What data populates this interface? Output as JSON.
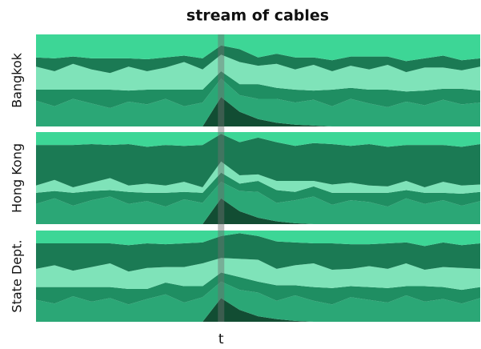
{
  "chart_data": {
    "type": "stream",
    "title": "stream of cables",
    "x_label": "t",
    "x": [
      0,
      1,
      2,
      3,
      4,
      5,
      6,
      7,
      8,
      9,
      10,
      11,
      12,
      13,
      14,
      15,
      16,
      17,
      18,
      19,
      20,
      21,
      22,
      23,
      24
    ],
    "xlim": [
      0,
      24
    ],
    "ylim": [
      0,
      100
    ],
    "highlight_x": 10,
    "panels": [
      {
        "label": "Bangkok",
        "series": [
          {
            "color": "#124d33",
            "values": [
              0,
              0,
              0,
              0,
              0,
              0,
              0,
              0,
              0,
              0,
              32,
              16,
              8,
              4,
              2,
              1,
              0,
              0,
              0,
              0,
              0,
              0,
              0,
              0,
              0
            ]
          },
          {
            "color": "#2ba776",
            "values": [
              28,
              22,
              30,
              25,
              20,
              27,
              24,
              30,
              22,
              26,
              20,
              18,
              22,
              26,
              24,
              28,
              22,
              30,
              25,
              21,
              27,
              23,
              29,
              24,
              26
            ]
          },
          {
            "color": "#1f8e62",
            "values": [
              12,
              18,
              10,
              15,
              20,
              12,
              16,
              10,
              18,
              14,
              8,
              12,
              16,
              12,
              14,
              10,
              18,
              12,
              15,
              19,
              11,
              16,
              12,
              17,
              13
            ]
          },
          {
            "color": "#7fe3b9",
            "values": [
              25,
              20,
              28,
              22,
              18,
              26,
              20,
              24,
              30,
              22,
              18,
              24,
              20,
              26,
              22,
              28,
              20,
              24,
              22,
              27,
              21,
              25,
              23,
              20,
              26
            ]
          },
          {
            "color": "#1b7a54",
            "values": [
              10,
              14,
              8,
              12,
              16,
              9,
              13,
              11,
              7,
              12,
              10,
              14,
              9,
              11,
              13,
              8,
              12,
              10,
              14,
              9,
              12,
              10,
              13,
              11,
              9
            ]
          },
          {
            "color": "#3dd696",
            "values": [
              25,
              26,
              24,
              26,
              26,
              26,
              27,
              25,
              23,
              26,
              12,
              16,
              25,
              21,
              25,
              25,
              28,
              24,
              24,
              24,
              29,
              26,
              23,
              28,
              26
            ]
          }
        ]
      },
      {
        "label": "Hong Kong",
        "series": [
          {
            "color": "#124d33",
            "values": [
              0,
              0,
              0,
              0,
              0,
              0,
              0,
              0,
              0,
              0,
              28,
              14,
              7,
              3,
              1,
              0,
              0,
              0,
              0,
              0,
              0,
              0,
              0,
              0,
              0
            ]
          },
          {
            "color": "#2ba776",
            "values": [
              22,
              28,
              20,
              26,
              30,
              22,
              25,
              19,
              27,
              23,
              18,
              22,
              28,
              20,
              25,
              30,
              21,
              26,
              24,
              19,
              28,
              22,
              26,
              20,
              25
            ]
          },
          {
            "color": "#1f8e62",
            "values": [
              12,
              8,
              14,
              10,
              7,
              13,
              9,
              15,
              8,
              11,
              10,
              8,
              12,
              14,
              9,
              11,
              13,
              8,
              10,
              15,
              9,
              12,
              8,
              13,
              10
            ]
          },
          {
            "color": "#7fe3b9",
            "values": [
              8,
              12,
              6,
              9,
              13,
              7,
              10,
              8,
              11,
              6,
              12,
              9,
              7,
              10,
              12,
              6,
              9,
              11,
              8,
              7,
              10,
              6,
              12,
              9,
              8
            ]
          },
          {
            "color": "#1b7a54",
            "values": [
              44,
              38,
              46,
              42,
              36,
              45,
              40,
              44,
              39,
              46,
              30,
              36,
              40,
              42,
              38,
              41,
              44,
              40,
              45,
              43,
              39,
              46,
              40,
              42,
              44
            ]
          },
          {
            "color": "#3dd696",
            "values": [
              14,
              14,
              14,
              13,
              14,
              13,
              16,
              14,
              15,
              14,
              2,
              11,
              6,
              11,
              15,
              12,
              13,
              15,
              13,
              16,
              14,
              14,
              14,
              16,
              13
            ]
          }
        ]
      },
      {
        "label": "State Dept.",
        "series": [
          {
            "color": "#124d33",
            "values": [
              0,
              0,
              0,
              0,
              0,
              0,
              0,
              0,
              0,
              0,
              26,
              13,
              6,
              3,
              1,
              0,
              0,
              0,
              0,
              0,
              0,
              0,
              0,
              0,
              0
            ]
          },
          {
            "color": "#2ba776",
            "values": [
              24,
              20,
              28,
              22,
              26,
              19,
              25,
              30,
              21,
              27,
              18,
              22,
              26,
              20,
              28,
              23,
              19,
              27,
              24,
              21,
              29,
              22,
              25,
              20,
              26
            ]
          },
          {
            "color": "#1f8e62",
            "values": [
              14,
              18,
              10,
              16,
              12,
              17,
              11,
              13,
              18,
              12,
              10,
              14,
              12,
              17,
              11,
              15,
              18,
              12,
              14,
              16,
              10,
              17,
              13,
              15,
              12
            ]
          },
          {
            "color": "#7fe3b9",
            "values": [
              20,
              24,
              18,
              22,
              26,
              19,
              23,
              17,
              21,
              25,
              16,
              20,
              24,
              18,
              22,
              26,
              20,
              19,
              23,
              21,
              25,
              18,
              22,
              24,
              20
            ]
          },
          {
            "color": "#1b7a54",
            "values": [
              28,
              24,
              30,
              26,
              22,
              29,
              27,
              25,
              26,
              23,
              24,
              28,
              26,
              30,
              25,
              22,
              29,
              27,
              24,
              28,
              23,
              26,
              27,
              25,
              28
            ]
          },
          {
            "color": "#3dd696",
            "values": [
              14,
              14,
              14,
              14,
              14,
              16,
              14,
              15,
              14,
              13,
              6,
              3,
              6,
              12,
              13,
              14,
              14,
              15,
              15,
              14,
              13,
              17,
              13,
              16,
              14
            ]
          }
        ]
      }
    ]
  }
}
